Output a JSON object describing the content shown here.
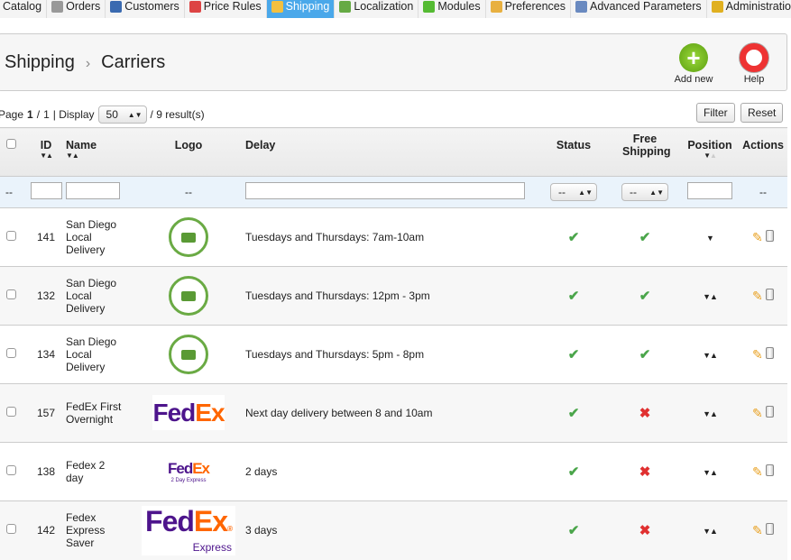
{
  "tabs": [
    {
      "label": "Catalog",
      "color": "#fff"
    },
    {
      "label": "Orders",
      "color": "#999"
    },
    {
      "label": "Customers",
      "color": "#3a6ab0"
    },
    {
      "label": "Price Rules",
      "color": "#d44"
    },
    {
      "label": "Shipping",
      "color": "#f2c040",
      "active": true
    },
    {
      "label": "Localization",
      "color": "#6a4"
    },
    {
      "label": "Modules",
      "color": "#5b3"
    },
    {
      "label": "Preferences",
      "color": "#e8b040"
    },
    {
      "label": "Advanced Parameters",
      "color": "#6a8ac0"
    },
    {
      "label": "Administration",
      "color": "#e0b020"
    }
  ],
  "breadcrumb": {
    "parent": "Shipping",
    "separator": "›",
    "current": "Carriers"
  },
  "toolbar": {
    "add_new": "Add new",
    "help": "Help"
  },
  "pager": {
    "page_label": "Page",
    "page": "1",
    "total_pages": "1",
    "display_label": "| Display",
    "display_value": "50",
    "results": "/ 9 result(s)"
  },
  "buttons": {
    "filter": "Filter",
    "reset": "Reset"
  },
  "columns": {
    "id": "ID",
    "name": "Name",
    "logo": "Logo",
    "delay": "Delay",
    "status": "Status",
    "free_shipping": "Free Shipping",
    "position": "Position",
    "actions": "Actions"
  },
  "filter": {
    "dash": "--",
    "select_value": "--"
  },
  "rows": [
    {
      "id": "141",
      "name": "San Diego Local Delivery",
      "logo": "free-delivery-stamp",
      "delay": "Tuesdays and Thursdays: 7am-10am",
      "status": true,
      "free": true,
      "position": "down"
    },
    {
      "id": "132",
      "name": "San Diego Local Delivery",
      "logo": "free-delivery-stamp",
      "delay": "Tuesdays and Thursdays: 12pm - 3pm",
      "status": true,
      "free": true,
      "position": "both"
    },
    {
      "id": "134",
      "name": "San Diego Local Delivery",
      "logo": "free-delivery-stamp",
      "delay": "Tuesdays and Thursdays: 5pm - 8pm",
      "status": true,
      "free": true,
      "position": "both"
    },
    {
      "id": "157",
      "name": "FedEx First Overnight",
      "logo": "fedex",
      "delay": "Next day delivery between 8 and 10am",
      "status": true,
      "free": false,
      "position": "both"
    },
    {
      "id": "138",
      "name": "Fedex 2 day",
      "logo": "fedex-2day",
      "logo_sub": "2 Day Express",
      "delay": "2 days",
      "status": true,
      "free": false,
      "position": "both"
    },
    {
      "id": "142",
      "name": "Fedex Express Saver",
      "logo": "fedex-express",
      "logo_sub": "Express",
      "delay": "3 days",
      "status": true,
      "free": false,
      "position": "both"
    }
  ]
}
